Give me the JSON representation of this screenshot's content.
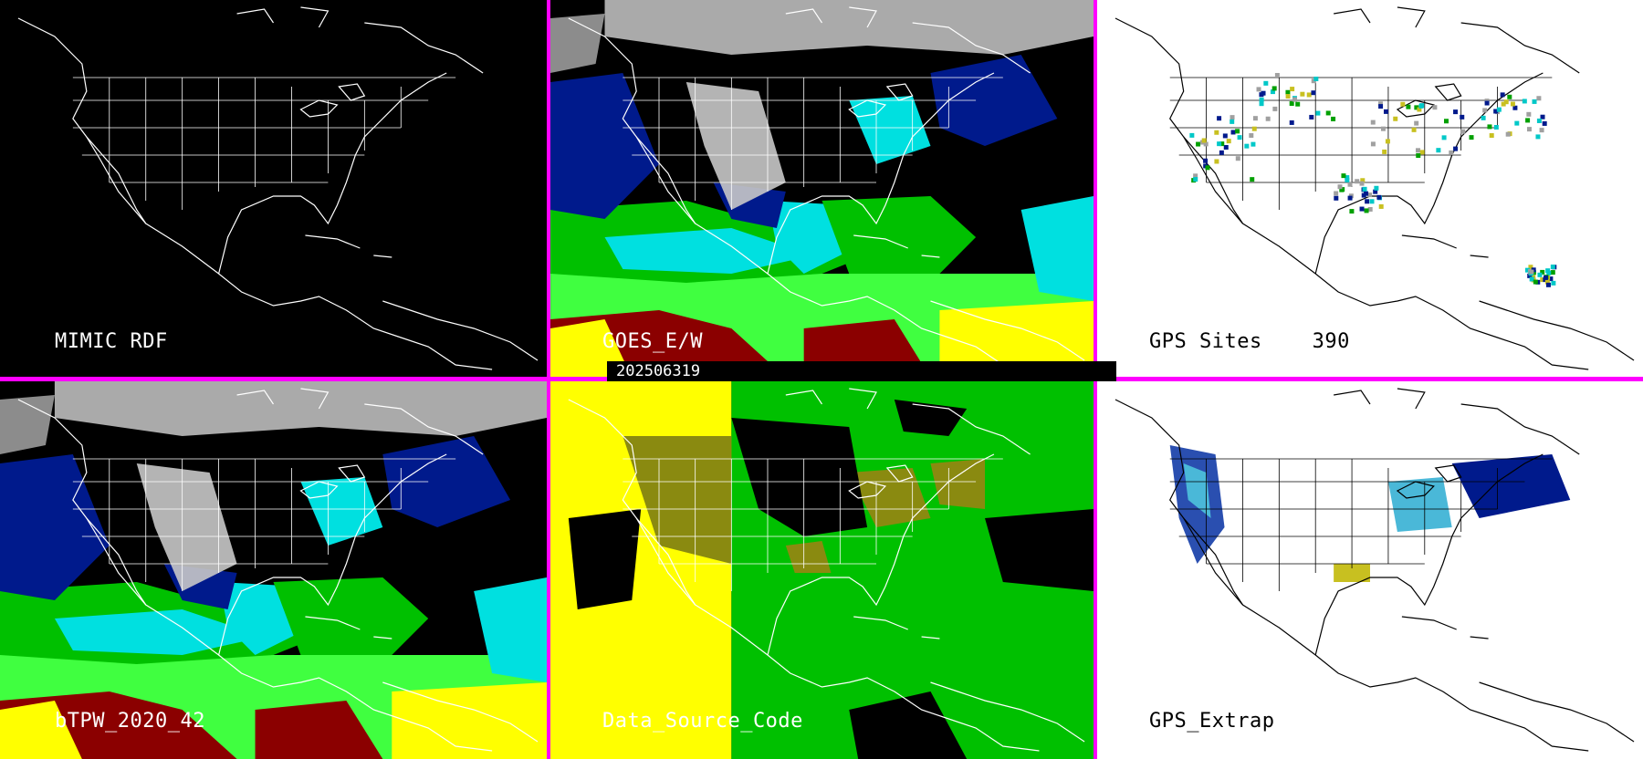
{
  "timestamp": "202506319",
  "panels": [
    {
      "label": "MIMIC RDF",
      "theme": "dark"
    },
    {
      "label": "GOES_E/W",
      "theme": "dark"
    },
    {
      "label": "GPS Sites    390",
      "theme": "light"
    },
    {
      "label": "bTPW_2020_42",
      "theme": "dark"
    },
    {
      "label": "Data_Source_Code",
      "theme": "dark"
    },
    {
      "label": "GPS_Extrap",
      "theme": "light"
    }
  ],
  "colors": {
    "divider": "#ff00ff",
    "coast_dark": "#ffffff",
    "coast_light": "#000000",
    "tpw_scale": [
      "#c8c8c8",
      "#001a8c",
      "#2a2ad0",
      "#00e0e0",
      "#00c000",
      "#40ff40",
      "#8a8a10",
      "#ffff00",
      "#8b0000"
    ],
    "source_yellow": "#ffff00",
    "source_olive": "#8a8a10",
    "source_green": "#00c000"
  }
}
